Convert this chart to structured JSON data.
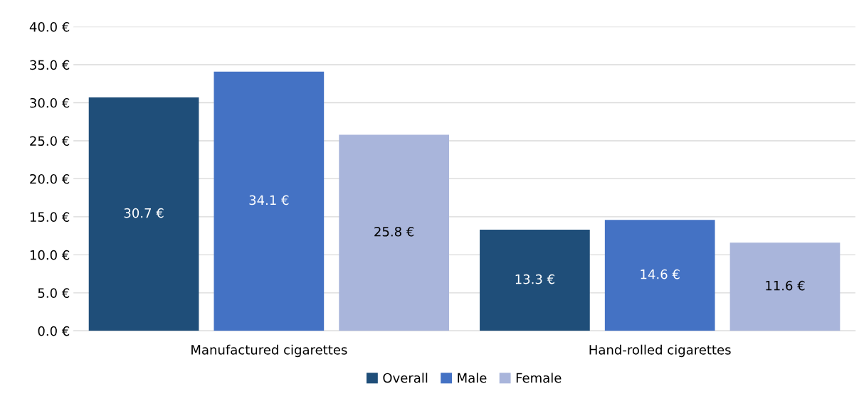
{
  "chart_data": {
    "type": "bar",
    "categories": [
      "Manufactured cigarettes",
      "Hand-rolled cigarettes"
    ],
    "series": [
      {
        "name": "Overall",
        "color": "#1f4e79",
        "values": [
          30.7,
          13.3
        ],
        "value_labels": [
          "30.7 €",
          "13.3 €"
        ]
      },
      {
        "name": "Male",
        "color": "#4472c4",
        "values": [
          34.1,
          14.6
        ],
        "value_labels": [
          "34.1 €",
          "14.6 €"
        ]
      },
      {
        "name": "Female",
        "color": "#a9b5db",
        "values": [
          25.8,
          11.6
        ],
        "value_labels": [
          "25.8 €",
          "11.6 €"
        ]
      }
    ],
    "ylim": [
      0,
      40
    ],
    "yticks": [
      {
        "value": 0,
        "label": "0.0 €"
      },
      {
        "value": 5,
        "label": "5.0 €"
      },
      {
        "value": 10,
        "label": "10.0 €"
      },
      {
        "value": 15,
        "label": "15.0 €"
      },
      {
        "value": 20,
        "label": "20.0 €"
      },
      {
        "value": 25,
        "label": "25.0 €"
      },
      {
        "value": 30,
        "label": "30.0 €"
      },
      {
        "value": 35,
        "label": "35.0 €"
      },
      {
        "value": 40,
        "label": "40.0 €"
      }
    ],
    "grid": "y",
    "legend": "bottom"
  }
}
